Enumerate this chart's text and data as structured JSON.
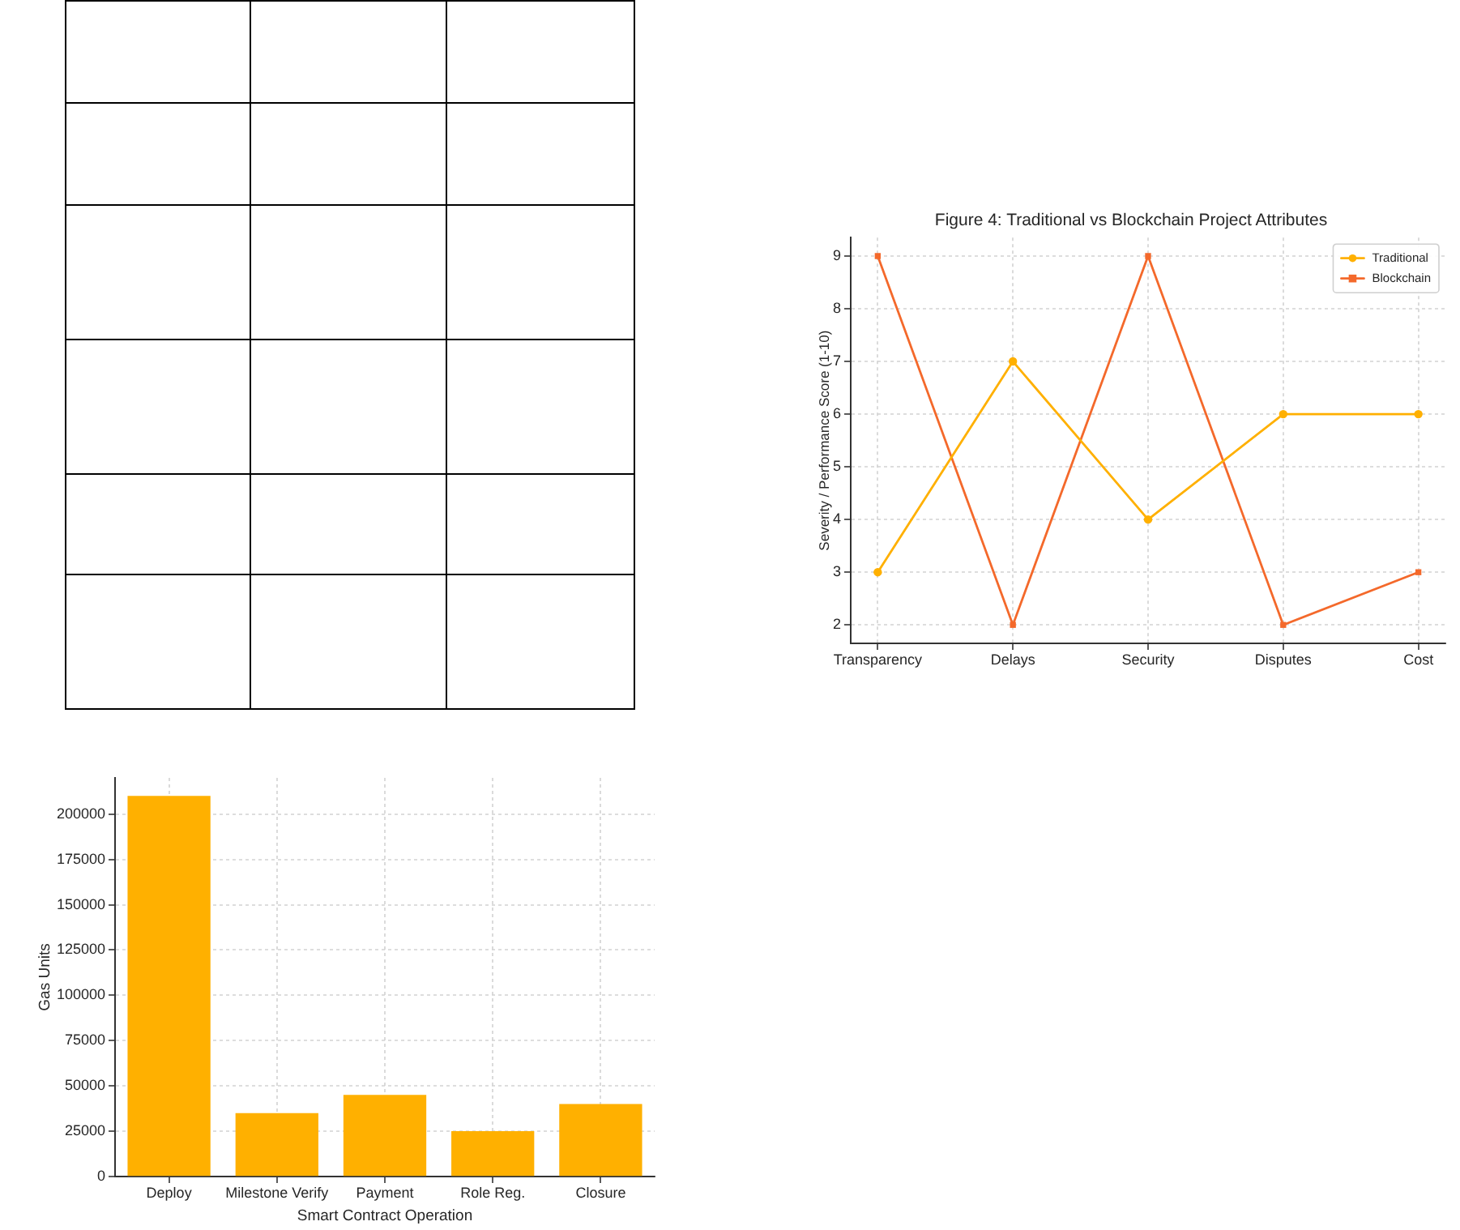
{
  "chart_data": [
    {
      "type": "bar",
      "categories": [
        "Deploy",
        "Milestone Verify",
        "Payment",
        "Role Reg.",
        "Closure"
      ],
      "values": [
        210000,
        35000,
        45000,
        25000,
        40000
      ],
      "color": "#ffb000",
      "xlabel": "Smart Contract Operation",
      "ylabel": "Gas Units",
      "ylim": [
        0,
        220000
      ],
      "yticks": [
        0,
        25000,
        50000,
        75000,
        100000,
        125000,
        150000,
        175000,
        200000
      ],
      "grid": true
    },
    {
      "type": "line",
      "title": "Figure 4: Traditional vs Blockchain Project Attributes",
      "categories": [
        "Transparency",
        "Delays",
        "Security",
        "Disputes",
        "Cost"
      ],
      "series": [
        {
          "name": "Traditional",
          "color": "#ffb000",
          "marker": "circle",
          "values": [
            3,
            7,
            4,
            6,
            6
          ]
        },
        {
          "name": "Blockchain",
          "color": "#f4692b",
          "marker": "square",
          "values": [
            9,
            2,
            9,
            2,
            3
          ]
        }
      ],
      "ylabel": "Severity / Performance Score (1-10)",
      "ylim": [
        1.65,
        9.35
      ],
      "yticks": [
        2,
        3,
        4,
        5,
        6,
        7,
        8,
        9
      ],
      "grid": true,
      "legend": "top right"
    }
  ]
}
